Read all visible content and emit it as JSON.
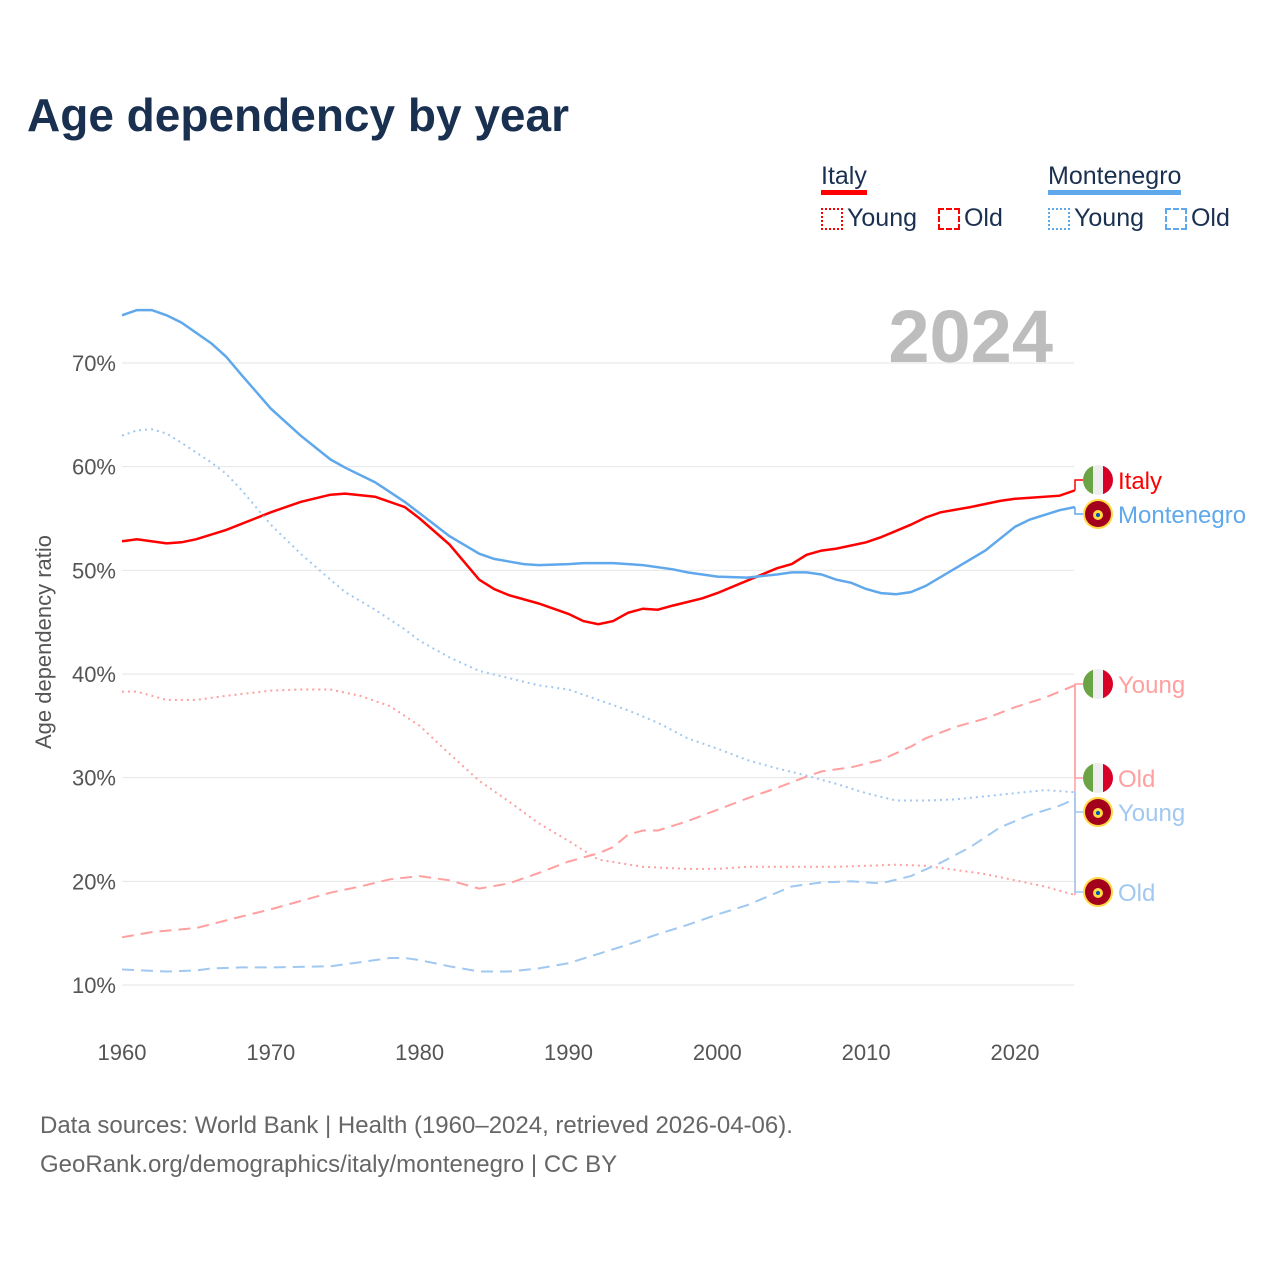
{
  "title": "Age dependency by year",
  "legend": {
    "groups": [
      {
        "country": "Italy",
        "color": "#ff0000",
        "light": "#ff9f9f",
        "items": [
          "Young",
          "Old"
        ]
      },
      {
        "country": "Montenegro",
        "color": "#60a8ec",
        "light": "#a0c8f0",
        "items": [
          "Young",
          "Old"
        ]
      }
    ]
  },
  "year_label": "2024",
  "footer": {
    "line1": "Data sources: World Bank | Health (1960–2024, retrieved 2026-04-06).",
    "line2": "GeoRank.org/demographics/italy/montenegro | CC BY"
  },
  "chart_data": {
    "type": "line",
    "title": "Age dependency by year",
    "xlabel": "",
    "ylabel": "Age dependency ratio",
    "xlim": [
      1960,
      2024
    ],
    "ylim": [
      10,
      70
    ],
    "xticks": [
      "1960",
      "1970",
      "1980",
      "1990",
      "2000",
      "2010",
      "2020"
    ],
    "yticks": [
      "10%",
      "20%",
      "30%",
      "40%",
      "50%",
      "60%",
      "70%"
    ],
    "series": [
      {
        "name": "Italy",
        "label": "Italy",
        "style": "solid",
        "color": "#ff0000",
        "flag": "italy",
        "points": [
          [
            1960,
            52.8
          ],
          [
            1961,
            53.0
          ],
          [
            1963,
            52.6
          ],
          [
            1964,
            52.7
          ],
          [
            1965,
            53.0
          ],
          [
            1967,
            53.9
          ],
          [
            1970,
            55.6
          ],
          [
            1972,
            56.6
          ],
          [
            1974,
            57.3
          ],
          [
            1975,
            57.4
          ],
          [
            1977,
            57.1
          ],
          [
            1979,
            56.1
          ],
          [
            1980,
            55.0
          ],
          [
            1982,
            52.5
          ],
          [
            1984,
            49.1
          ],
          [
            1985,
            48.2
          ],
          [
            1986,
            47.6
          ],
          [
            1988,
            46.8
          ],
          [
            1990,
            45.8
          ],
          [
            1991,
            45.1
          ],
          [
            1992,
            44.8
          ],
          [
            1993,
            45.1
          ],
          [
            1994,
            45.9
          ],
          [
            1995,
            46.3
          ],
          [
            1996,
            46.2
          ],
          [
            1997,
            46.6
          ],
          [
            1999,
            47.3
          ],
          [
            2000,
            47.8
          ],
          [
            2002,
            49.0
          ],
          [
            2004,
            50.2
          ],
          [
            2005,
            50.6
          ],
          [
            2006,
            51.5
          ],
          [
            2007,
            51.9
          ],
          [
            2008,
            52.1
          ],
          [
            2010,
            52.7
          ],
          [
            2011,
            53.2
          ],
          [
            2013,
            54.4
          ],
          [
            2014,
            55.1
          ],
          [
            2015,
            55.6
          ],
          [
            2017,
            56.1
          ],
          [
            2019,
            56.7
          ],
          [
            2020,
            56.9
          ],
          [
            2023,
            57.2
          ],
          [
            2024,
            57.7
          ]
        ]
      },
      {
        "name": "Montenegro",
        "label": "Montenegro",
        "style": "solid",
        "color": "#60a8ec",
        "flag": "montenegro",
        "points": [
          [
            1960,
            74.6
          ],
          [
            1961,
            75.1
          ],
          [
            1962,
            75.1
          ],
          [
            1963,
            74.6
          ],
          [
            1964,
            73.9
          ],
          [
            1966,
            71.9
          ],
          [
            1967,
            70.6
          ],
          [
            1968,
            68.9
          ],
          [
            1970,
            65.6
          ],
          [
            1972,
            63.0
          ],
          [
            1974,
            60.7
          ],
          [
            1975,
            59.9
          ],
          [
            1977,
            58.5
          ],
          [
            1979,
            56.6
          ],
          [
            1980,
            55.5
          ],
          [
            1982,
            53.3
          ],
          [
            1984,
            51.6
          ],
          [
            1985,
            51.1
          ],
          [
            1987,
            50.6
          ],
          [
            1988,
            50.5
          ],
          [
            1990,
            50.6
          ],
          [
            1991,
            50.7
          ],
          [
            1993,
            50.7
          ],
          [
            1995,
            50.5
          ],
          [
            1997,
            50.1
          ],
          [
            1998,
            49.8
          ],
          [
            2000,
            49.4
          ],
          [
            2002,
            49.3
          ],
          [
            2004,
            49.6
          ],
          [
            2005,
            49.8
          ],
          [
            2006,
            49.8
          ],
          [
            2007,
            49.6
          ],
          [
            2008,
            49.1
          ],
          [
            2009,
            48.8
          ],
          [
            2010,
            48.2
          ],
          [
            2011,
            47.8
          ],
          [
            2012,
            47.7
          ],
          [
            2013,
            47.9
          ],
          [
            2014,
            48.5
          ],
          [
            2016,
            50.2
          ],
          [
            2018,
            51.9
          ],
          [
            2020,
            54.2
          ],
          [
            2021,
            54.9
          ],
          [
            2023,
            55.8
          ],
          [
            2024,
            56.1
          ]
        ]
      },
      {
        "name": "Italy Young",
        "label": "Young",
        "style": "dotted",
        "color": "#ff9f9f",
        "flag": "italy",
        "points": [
          [
            1960,
            38.3
          ],
          [
            1961,
            38.3
          ],
          [
            1963,
            37.5
          ],
          [
            1965,
            37.5
          ],
          [
            1967,
            37.9
          ],
          [
            1970,
            38.4
          ],
          [
            1972,
            38.5
          ],
          [
            1974,
            38.5
          ],
          [
            1976,
            37.9
          ],
          [
            1978,
            36.9
          ],
          [
            1980,
            35.0
          ],
          [
            1982,
            32.3
          ],
          [
            1984,
            29.7
          ],
          [
            1986,
            27.7
          ],
          [
            1988,
            25.6
          ],
          [
            1990,
            23.9
          ],
          [
            1992,
            22.1
          ],
          [
            1995,
            21.4
          ],
          [
            1998,
            21.2
          ],
          [
            2000,
            21.2
          ],
          [
            2002,
            21.4
          ],
          [
            2005,
            21.4
          ],
          [
            2008,
            21.4
          ],
          [
            2010,
            21.5
          ],
          [
            2012,
            21.6
          ],
          [
            2014,
            21.5
          ],
          [
            2016,
            21.1
          ],
          [
            2018,
            20.7
          ],
          [
            2020,
            20.1
          ],
          [
            2022,
            19.5
          ],
          [
            2024,
            18.7
          ]
        ]
      },
      {
        "name": "Italy Old",
        "label": "Old",
        "style": "dashed",
        "color": "#ff9f9f",
        "flag": "italy",
        "points": [
          [
            1960,
            14.6
          ],
          [
            1962,
            15.1
          ],
          [
            1965,
            15.5
          ],
          [
            1968,
            16.6
          ],
          [
            1970,
            17.3
          ],
          [
            1972,
            18.1
          ],
          [
            1974,
            18.9
          ],
          [
            1976,
            19.5
          ],
          [
            1978,
            20.2
          ],
          [
            1980,
            20.5
          ],
          [
            1982,
            20.1
          ],
          [
            1984,
            19.3
          ],
          [
            1986,
            19.8
          ],
          [
            1988,
            20.8
          ],
          [
            1990,
            21.9
          ],
          [
            1992,
            22.7
          ],
          [
            1993,
            23.3
          ],
          [
            1994,
            24.5
          ],
          [
            1995,
            24.9
          ],
          [
            1996,
            24.9
          ],
          [
            1998,
            25.8
          ],
          [
            2000,
            26.9
          ],
          [
            2002,
            28.0
          ],
          [
            2004,
            29.0
          ],
          [
            2006,
            30.1
          ],
          [
            2007,
            30.6
          ],
          [
            2009,
            31.0
          ],
          [
            2011,
            31.7
          ],
          [
            2013,
            33.0
          ],
          [
            2014,
            33.8
          ],
          [
            2016,
            34.9
          ],
          [
            2018,
            35.7
          ],
          [
            2020,
            36.8
          ],
          [
            2022,
            37.7
          ],
          [
            2024,
            38.9
          ]
        ]
      },
      {
        "name": "Montenegro Young",
        "label": "Young",
        "style": "dotted",
        "color": "#a0c8f0",
        "flag": "montenegro",
        "points": [
          [
            1960,
            63.0
          ],
          [
            1961,
            63.5
          ],
          [
            1962,
            63.6
          ],
          [
            1963,
            63.2
          ],
          [
            1964,
            62.3
          ],
          [
            1966,
            60.4
          ],
          [
            1967,
            59.3
          ],
          [
            1968,
            57.8
          ],
          [
            1970,
            54.4
          ],
          [
            1972,
            51.6
          ],
          [
            1974,
            49.1
          ],
          [
            1975,
            47.9
          ],
          [
            1977,
            46.2
          ],
          [
            1979,
            44.3
          ],
          [
            1980,
            43.2
          ],
          [
            1982,
            41.6
          ],
          [
            1984,
            40.3
          ],
          [
            1986,
            39.6
          ],
          [
            1988,
            38.9
          ],
          [
            1990,
            38.5
          ],
          [
            1992,
            37.5
          ],
          [
            1994,
            36.5
          ],
          [
            1996,
            35.3
          ],
          [
            1998,
            33.8
          ],
          [
            2000,
            32.8
          ],
          [
            2002,
            31.7
          ],
          [
            2004,
            30.9
          ],
          [
            2006,
            30.2
          ],
          [
            2008,
            29.4
          ],
          [
            2010,
            28.5
          ],
          [
            2012,
            27.8
          ],
          [
            2014,
            27.8
          ],
          [
            2016,
            27.9
          ],
          [
            2018,
            28.2
          ],
          [
            2020,
            28.5
          ],
          [
            2022,
            28.8
          ],
          [
            2024,
            28.6
          ]
        ]
      },
      {
        "name": "Montenegro Old",
        "label": "Old",
        "style": "dashed",
        "color": "#a0c8f0",
        "flag": "montenegro",
        "points": [
          [
            1960,
            11.5
          ],
          [
            1963,
            11.3
          ],
          [
            1965,
            11.4
          ],
          [
            1966,
            11.6
          ],
          [
            1968,
            11.7
          ],
          [
            1970,
            11.7
          ],
          [
            1974,
            11.8
          ],
          [
            1976,
            12.2
          ],
          [
            1978,
            12.6
          ],
          [
            1979,
            12.6
          ],
          [
            1980,
            12.4
          ],
          [
            1982,
            11.8
          ],
          [
            1984,
            11.3
          ],
          [
            1986,
            11.3
          ],
          [
            1988,
            11.6
          ],
          [
            1990,
            12.1
          ],
          [
            1992,
            13.0
          ],
          [
            1994,
            13.9
          ],
          [
            1996,
            14.9
          ],
          [
            1998,
            15.8
          ],
          [
            2000,
            16.8
          ],
          [
            2002,
            17.7
          ],
          [
            2004,
            18.9
          ],
          [
            2005,
            19.5
          ],
          [
            2007,
            19.9
          ],
          [
            2009,
            20.0
          ],
          [
            2011,
            19.8
          ],
          [
            2013,
            20.5
          ],
          [
            2015,
            21.8
          ],
          [
            2017,
            23.3
          ],
          [
            2019,
            25.2
          ],
          [
            2021,
            26.4
          ],
          [
            2023,
            27.3
          ],
          [
            2024,
            27.9
          ]
        ]
      }
    ]
  }
}
